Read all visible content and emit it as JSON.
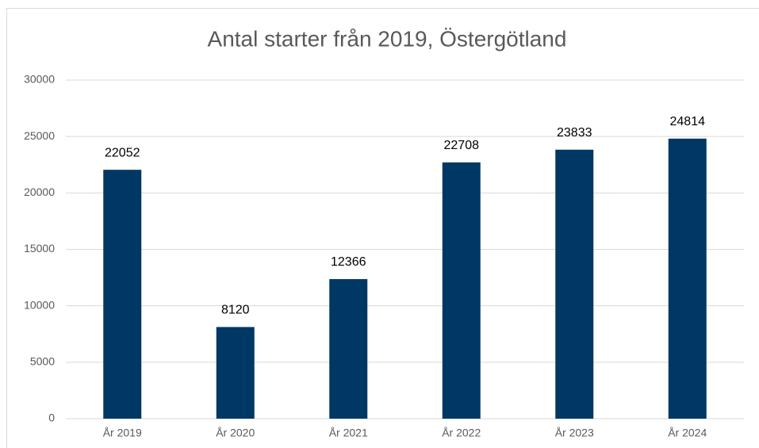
{
  "chart_data": {
    "type": "bar",
    "title": "Antal starter från 2019, Östergötland",
    "categories": [
      "År 2019",
      "År 2020",
      "År 2021",
      "År 2022",
      "År 2023",
      "År 2024"
    ],
    "values": [
      22052,
      8120,
      12366,
      22708,
      23833,
      24814
    ],
    "color": "#003865",
    "ylim": [
      0,
      30000
    ],
    "yticks": [
      0,
      5000,
      10000,
      15000,
      20000,
      25000,
      30000
    ],
    "grid": true
  }
}
